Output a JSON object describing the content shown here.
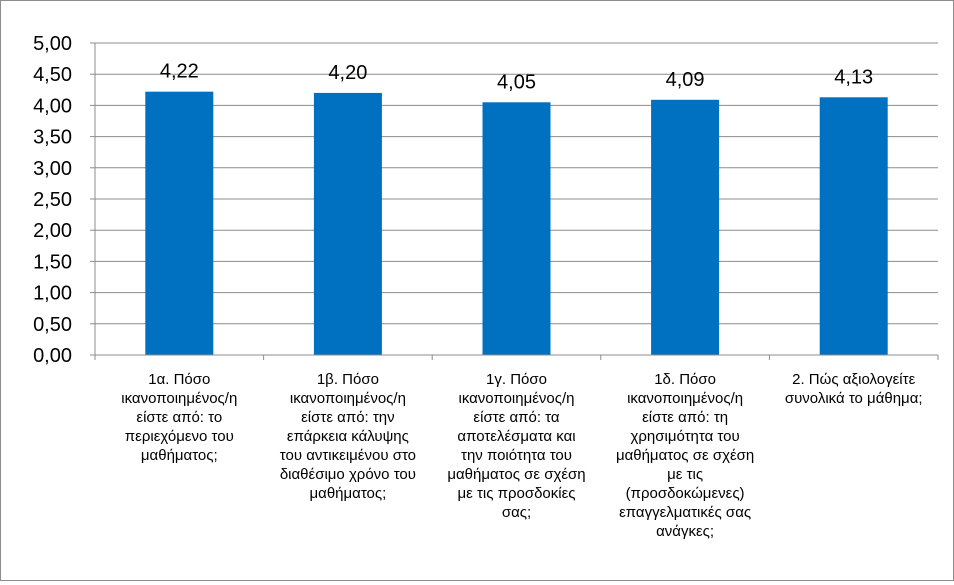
{
  "chart_data": {
    "type": "bar",
    "categories": [
      [
        "1α. Πόσο",
        "ικανοποιημένος/η",
        "είστε από: το",
        "περιεχόμενο του",
        "μαθήματος;"
      ],
      [
        "1β. Πόσο",
        "ικανοποιημένος/η",
        "είστε από: την",
        "επάρκεια κάλυψης",
        "του αντικειμένου στο",
        "διαθέσιμο χρόνο του",
        "μαθήματος;"
      ],
      [
        "1γ. Πόσο",
        "ικανοποιημένος/η",
        "είστε από: τα",
        "αποτελέσματα και",
        "την ποιότητα του",
        "μαθήματος σε σχέση",
        "με τις προσδοκίες",
        "σας;"
      ],
      [
        "1δ. Πόσο",
        "ικανοποιημένος/η",
        "είστε από: τη",
        "χρησιμότητα του",
        "μαθήματος σε σχέση",
        "με τις",
        "(προσδοκώμενες)",
        "επαγγελματικές σας",
        "ανάγκες;"
      ],
      [
        "2. Πώς αξιολογείτε",
        "συνολικά το μάθημα;"
      ]
    ],
    "values": [
      4.22,
      4.2,
      4.05,
      4.09,
      4.13
    ],
    "data_labels": [
      "4,22",
      "4,20",
      "4,05",
      "4,09",
      "4,13"
    ],
    "y_ticks": [
      "0,00",
      "0,50",
      "1,00",
      "1,50",
      "2,00",
      "2,50",
      "3,00",
      "3,50",
      "4,00",
      "4,50",
      "5,00"
    ],
    "ylim": [
      0,
      5
    ],
    "grid": true,
    "legend": "none",
    "colors": {
      "bar": "#0070C0",
      "grid": "#8c8c8c",
      "axis": "#8c8c8c"
    }
  }
}
